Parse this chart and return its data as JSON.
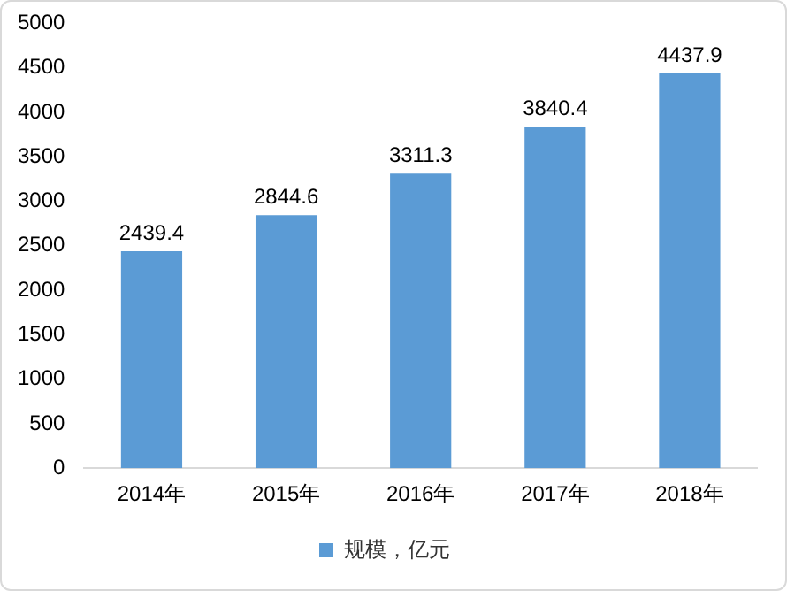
{
  "chart_data": {
    "type": "bar",
    "categories": [
      "2014年",
      "2015年",
      "2016年",
      "2017年",
      "2018年"
    ],
    "series": [
      {
        "name": "规模，亿元",
        "color": "#5b9bd5",
        "values": [
          2439.4,
          2844.6,
          3311.3,
          3840.4,
          4437.9
        ]
      }
    ],
    "ylim": [
      0,
      5000
    ],
    "yticks": [
      0,
      500,
      1000,
      1500,
      2000,
      2500,
      3000,
      3500,
      4000,
      4500,
      5000
    ],
    "grid": false,
    "legend": "bottom",
    "data_labels": true
  }
}
